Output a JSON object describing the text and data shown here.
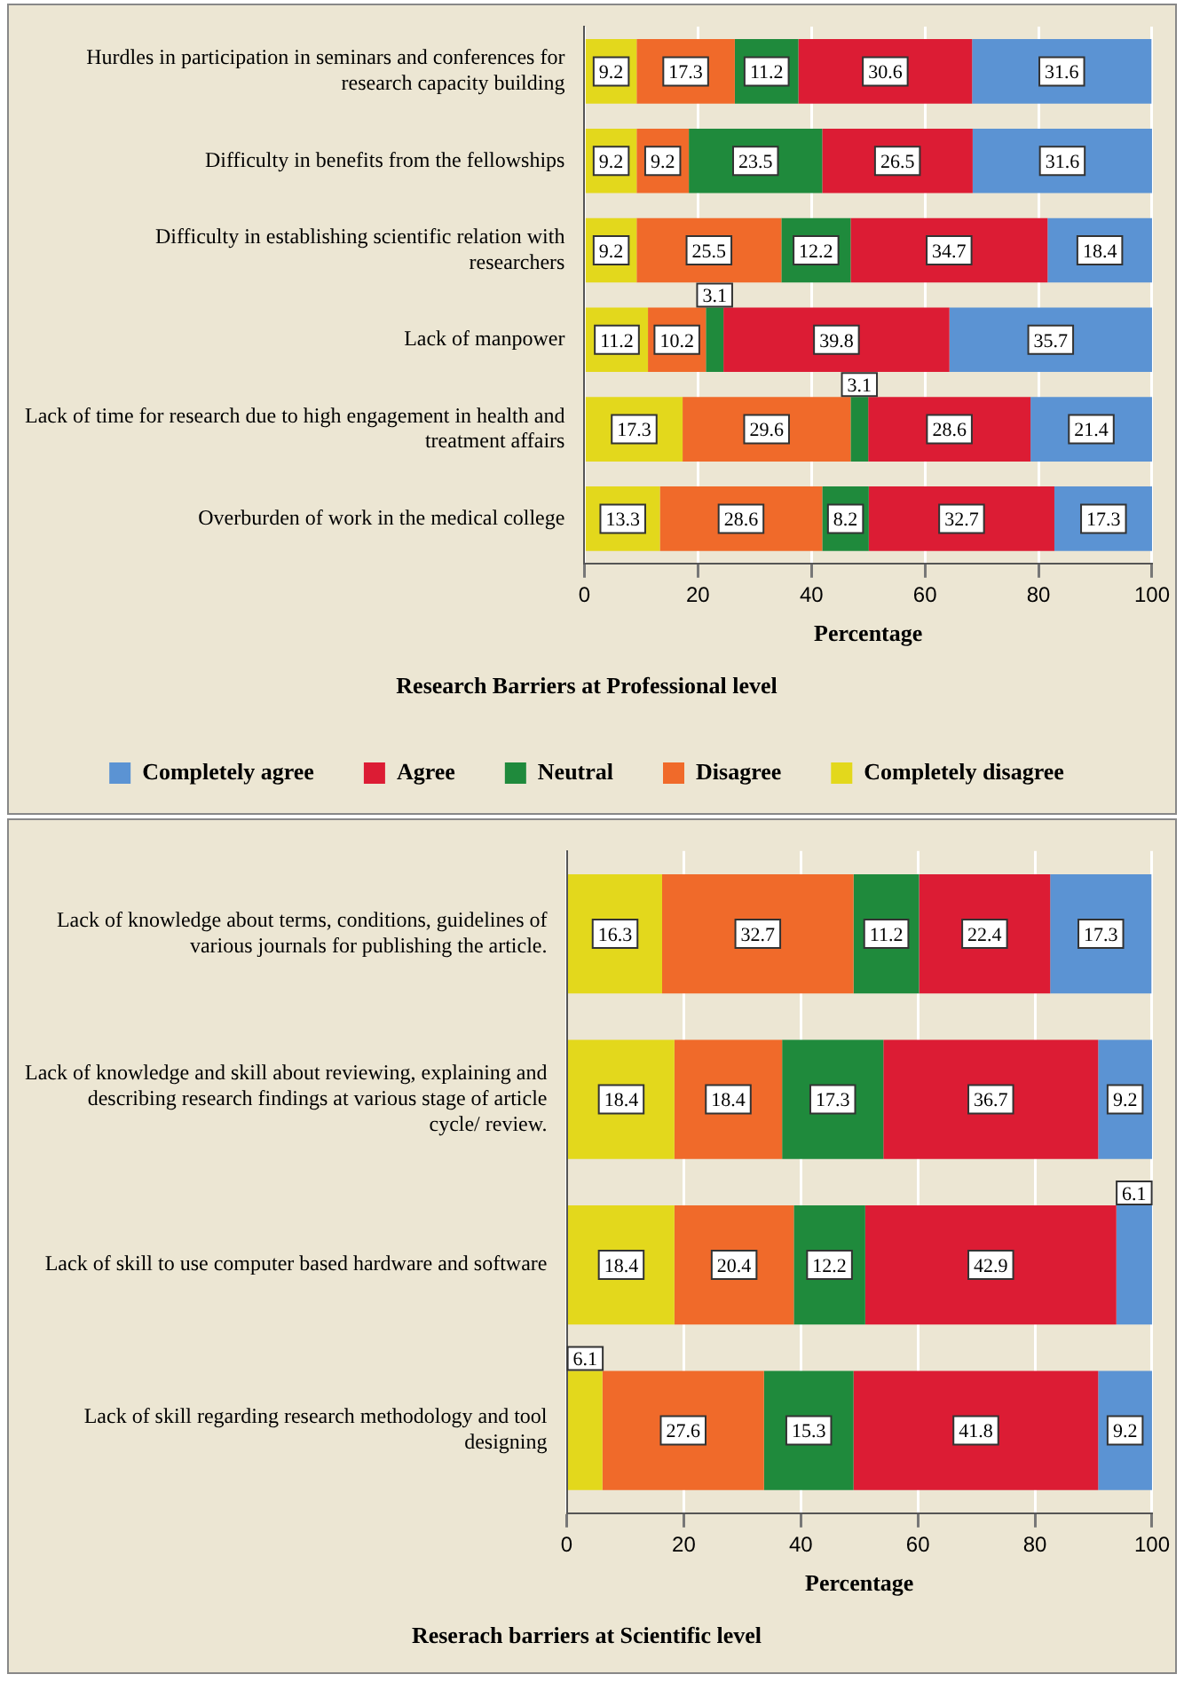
{
  "chart_data": [
    {
      "type": "bar",
      "orientation": "horizontal",
      "stacked": true,
      "title": "Research Barriers at Professional level",
      "xlabel": "Percentage",
      "categories": [
        "Hurdles in participation in seminars and conferences for research capacity building",
        "Difficulty in benefits from the fellowships",
        "Difficulty in establishing scientific relation with researchers",
        "Lack of manpower",
        "Lack of time for research due to high engagement in health and treatment affairs",
        "Overburden of work in the medical college"
      ],
      "series": [
        {
          "name": "Completely disagree",
          "color": "#e3d81c",
          "values": [
            9.2,
            9.2,
            9.2,
            11.2,
            17.3,
            13.3
          ]
        },
        {
          "name": "Disagree",
          "color": "#f06a2a",
          "values": [
            17.3,
            9.2,
            25.5,
            10.2,
            29.6,
            28.6
          ]
        },
        {
          "name": "Neutral",
          "color": "#1f8a3c",
          "values": [
            11.2,
            23.5,
            12.2,
            3.1,
            3.1,
            8.2
          ]
        },
        {
          "name": "Agree",
          "color": "#dc1c34",
          "values": [
            30.6,
            26.5,
            34.7,
            39.8,
            28.6,
            32.7
          ]
        },
        {
          "name": "Completely agree",
          "color": "#5b93d3",
          "values": [
            31.6,
            31.6,
            18.4,
            35.7,
            21.4,
            17.3
          ]
        }
      ],
      "xlim": [
        0,
        100
      ],
      "xticks": [
        0,
        20,
        40,
        60,
        80,
        100
      ],
      "grid": "x",
      "legend": "bottom",
      "data_labels": true
    },
    {
      "type": "bar",
      "orientation": "horizontal",
      "stacked": true,
      "title": "Reserach barriers at Scientific level",
      "xlabel": "Percentage",
      "categories": [
        "Lack of knowledge about terms, conditions, guidelines of various journals for publishing the article.",
        "Lack of knowledge and skill about reviewing, explaining and describing research findings at various stage of article cycle/ review.",
        "Lack of skill to use computer based hardware and software",
        "Lack of skill regarding research methodology and tool designing"
      ],
      "series": [
        {
          "color": "#e3d81c",
          "values": [
            16.3,
            18.4,
            18.4,
            6.1
          ]
        },
        {
          "color": "#f06a2a",
          "values": [
            32.7,
            18.4,
            20.4,
            27.6
          ]
        },
        {
          "color": "#1f8a3c",
          "values": [
            11.2,
            17.3,
            12.2,
            15.3
          ]
        },
        {
          "color": "#dc1c34",
          "values": [
            22.4,
            36.7,
            42.9,
            41.8
          ]
        },
        {
          "color": "#5b93d3",
          "values": [
            17.3,
            9.2,
            6.1,
            9.2
          ]
        }
      ],
      "xlim": [
        0,
        100
      ],
      "xticks": [
        0,
        20,
        40,
        60,
        80,
        100
      ],
      "grid": "x",
      "data_labels": true
    }
  ]
}
